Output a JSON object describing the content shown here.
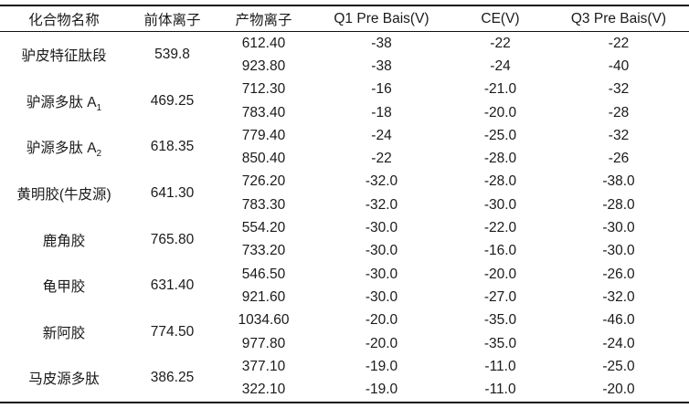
{
  "table": {
    "columns": [
      "化合物名称",
      "前体离子",
      "产物离子",
      "Q1 Pre Bais(V)",
      "CE(V)",
      "Q3 Pre Bais(V)"
    ],
    "groups": [
      {
        "compound": "驴皮特征肽段",
        "compound_sub": "",
        "precursor": "539.8",
        "rows": [
          {
            "product": "612.40",
            "q1": "-38",
            "ce": "-22",
            "q3": "-22"
          },
          {
            "product": "923.80",
            "q1": "-38",
            "ce": "-24",
            "q3": "-40"
          }
        ]
      },
      {
        "compound": "驴源多肽 A",
        "compound_sub": "1",
        "precursor": "469.25",
        "rows": [
          {
            "product": "712.30",
            "q1": "-16",
            "ce": "-21.0",
            "q3": "-32"
          },
          {
            "product": "783.40",
            "q1": "-18",
            "ce": "-20.0",
            "q3": "-28"
          }
        ]
      },
      {
        "compound": "驴源多肽 A",
        "compound_sub": "2",
        "precursor": "618.35",
        "rows": [
          {
            "product": "779.40",
            "q1": "-24",
            "ce": "-25.0",
            "q3": "-32"
          },
          {
            "product": "850.40",
            "q1": "-22",
            "ce": "-28.0",
            "q3": "-26"
          }
        ]
      },
      {
        "compound": "黄明胶(牛皮源)",
        "compound_sub": "",
        "precursor": "641.30",
        "rows": [
          {
            "product": "726.20",
            "q1": "-32.0",
            "ce": "-28.0",
            "q3": "-38.0"
          },
          {
            "product": "783.30",
            "q1": "-32.0",
            "ce": "-30.0",
            "q3": "-28.0"
          }
        ]
      },
      {
        "compound": "鹿角胶",
        "compound_sub": "",
        "precursor": "765.80",
        "rows": [
          {
            "product": "554.20",
            "q1": "-30.0",
            "ce": "-22.0",
            "q3": "-30.0"
          },
          {
            "product": "733.20",
            "q1": "-30.0",
            "ce": "-16.0",
            "q3": "-30.0"
          }
        ]
      },
      {
        "compound": "龟甲胶",
        "compound_sub": "",
        "precursor": "631.40",
        "rows": [
          {
            "product": "546.50",
            "q1": "-30.0",
            "ce": "-20.0",
            "q3": "-26.0"
          },
          {
            "product": "921.60",
            "q1": "-30.0",
            "ce": "-27.0",
            "q3": "-32.0"
          }
        ]
      },
      {
        "compound": "新阿胶",
        "compound_sub": "",
        "precursor": "774.50",
        "rows": [
          {
            "product": "1034.60",
            "q1": "-20.0",
            "ce": "-35.0",
            "q3": "-46.0"
          },
          {
            "product": "977.80",
            "q1": "-20.0",
            "ce": "-35.0",
            "q3": "-24.0"
          }
        ]
      },
      {
        "compound": "马皮源多肽",
        "compound_sub": "",
        "precursor": "386.25",
        "rows": [
          {
            "product": "377.10",
            "q1": "-19.0",
            "ce": "-11.0",
            "q3": "-25.0"
          },
          {
            "product": "322.10",
            "q1": "-19.0",
            "ce": "-11.0",
            "q3": "-20.0"
          }
        ]
      }
    ]
  }
}
